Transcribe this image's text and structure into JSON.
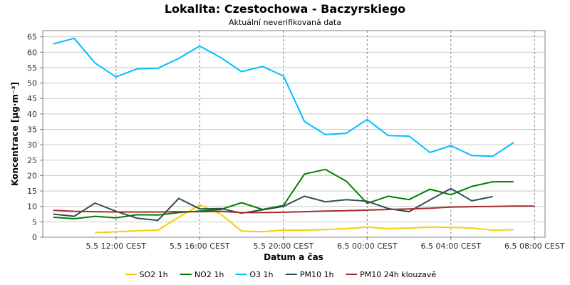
{
  "chart_data": {
    "type": "line",
    "title": "Lokalita: Czestochowa - Baczyrskiego",
    "subtitle": "Aktuální neverifikovaná data",
    "xlabel": "Datum a čas",
    "ylabel": "Koncentrace [µg·m⁻³]",
    "ylim": [
      0,
      67
    ],
    "yticks": [
      0,
      5,
      10,
      15,
      20,
      25,
      30,
      35,
      40,
      45,
      50,
      55,
      60,
      65
    ],
    "xlim": [
      8.5,
      32.5
    ],
    "xticks": [
      {
        "value": 12,
        "label": "5.5 12:00 CEST"
      },
      {
        "value": 16,
        "label": "5.5 16:00 CEST"
      },
      {
        "value": 20,
        "label": "5.5 20:00 CEST"
      },
      {
        "value": 24,
        "label": "6.5 00:00 CEST"
      },
      {
        "value": 28,
        "label": "6.5 04:00 CEST"
      },
      {
        "value": 32,
        "label": "6.5 08:00 CEST"
      }
    ],
    "x_hours": [
      9,
      10,
      11,
      12,
      13,
      14,
      15,
      16,
      17,
      18,
      19,
      20,
      21,
      22,
      23,
      24,
      25,
      26,
      27,
      28,
      29,
      30,
      31,
      32
    ],
    "grid": true,
    "legend_position": "bottom",
    "series": [
      {
        "name": "SO2 1h",
        "color": "#f5d000",
        "values": [
          null,
          null,
          1.5,
          1.8,
          2.1,
          2.3,
          6.5,
          10.5,
          7.5,
          2,
          1.8,
          2.3,
          2.3,
          2.5,
          2.8,
          3.3,
          2.8,
          3,
          3.3,
          3.2,
          3,
          2.3,
          2.5,
          null
        ]
      },
      {
        "name": "NO2 1h",
        "color": "#008000",
        "values": [
          6.5,
          6,
          6.8,
          6.3,
          7.3,
          7.2,
          8,
          8.5,
          9,
          11.2,
          9,
          10.3,
          20.5,
          22,
          18.2,
          11,
          13.3,
          12.2,
          15.6,
          13.8,
          16.5,
          18,
          18,
          null
        ]
      },
      {
        "name": "O3 1h",
        "color": "#00bfff",
        "values": [
          62.7,
          64.5,
          56.5,
          52,
          54.6,
          54.8,
          58,
          62,
          58.3,
          53.7,
          55.4,
          52.3,
          37.6,
          33.3,
          33.7,
          38.2,
          33,
          32.8,
          27.5,
          29.7,
          26.5,
          26.3,
          30.7,
          null
        ]
      },
      {
        "name": "PM10 1h",
        "color": "#2f4f4f",
        "values": [
          7.5,
          6.8,
          11.1,
          8.4,
          6.2,
          5.5,
          12.6,
          9.2,
          9.3,
          7.8,
          8.9,
          10,
          13.3,
          11.5,
          12.2,
          11.7,
          9.3,
          8.3,
          12.1,
          15.8,
          11.8,
          13.2,
          null,
          null
        ]
      },
      {
        "name": "PM10 24h klouzavě",
        "color": "#a52a2a",
        "values": [
          8.7,
          8.4,
          8.3,
          8.2,
          8.2,
          8.2,
          8.3,
          8.3,
          8.4,
          8,
          8,
          8.1,
          8.3,
          8.5,
          8.6,
          8.8,
          9,
          9.2,
          9.4,
          9.8,
          9.9,
          10,
          10.1,
          10.1
        ]
      }
    ]
  }
}
